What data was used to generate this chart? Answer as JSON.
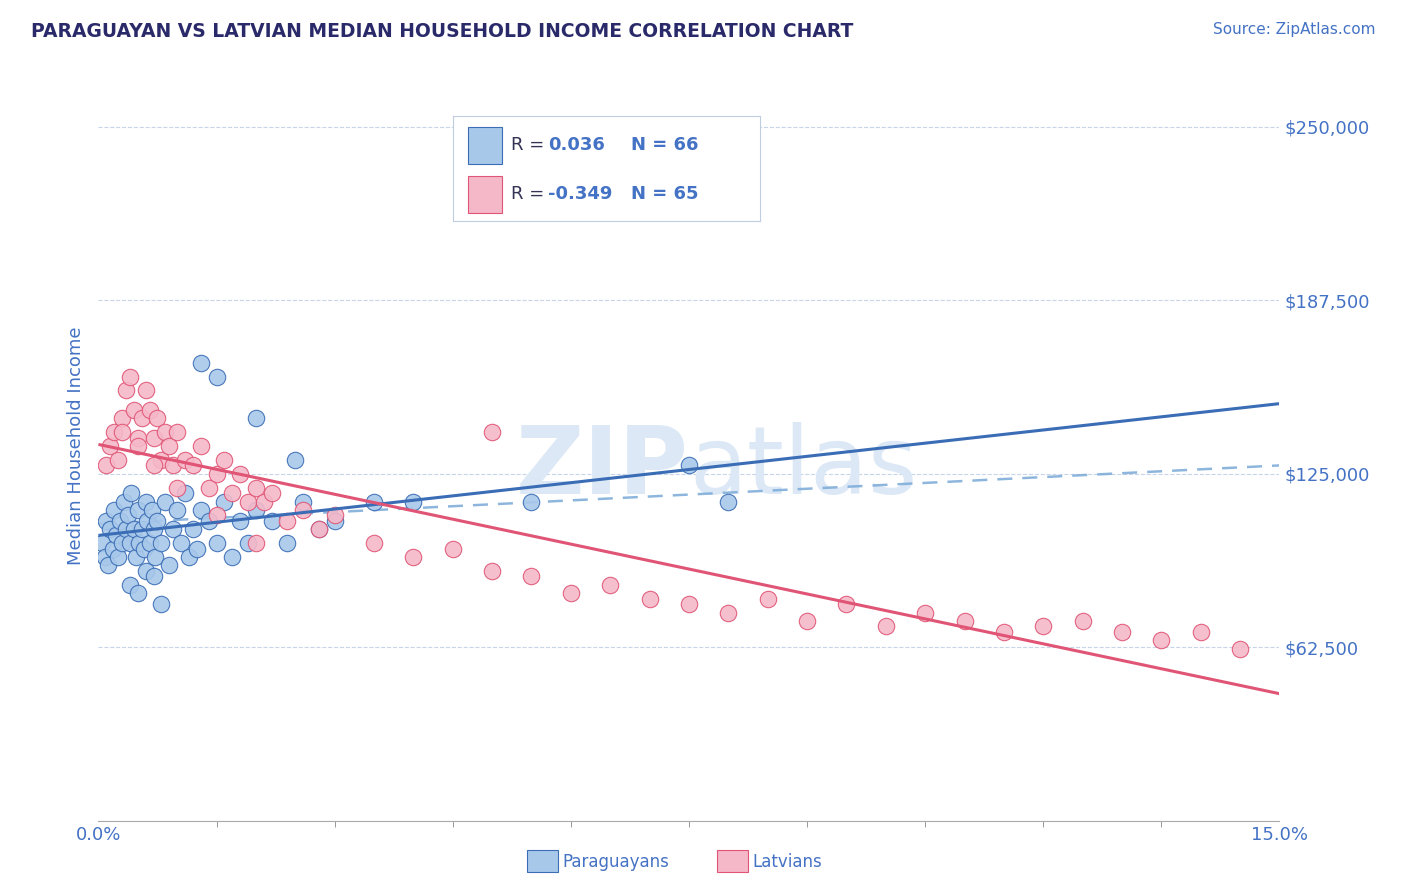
{
  "title": "PARAGUAYAN VS LATVIAN MEDIAN HOUSEHOLD INCOME CORRELATION CHART",
  "source": "Source: ZipAtlas.com",
  "ylabel": "Median Household Income",
  "xlim": [
    0.0,
    15.0
  ],
  "ylim": [
    0,
    270000
  ],
  "yticks": [
    0,
    62500,
    125000,
    187500,
    250000
  ],
  "ytick_labels": [
    "",
    "$62,500",
    "$125,000",
    "$187,500",
    "$250,000"
  ],
  "xtick_minor": [
    1.5,
    3.0,
    4.5,
    6.0,
    7.5,
    9.0,
    10.5,
    12.0,
    13.5
  ],
  "paraguayan_R": 0.036,
  "paraguayan_N": 66,
  "latvian_R": -0.349,
  "latvian_N": 65,
  "blue_dot_color": "#a8c8ea",
  "pink_dot_color": "#f5b8c8",
  "blue_line_color": "#3a6db5",
  "pink_line_color": "#e05575",
  "blue_dashed_color": "#7aaad8",
  "text_blue": "#4472c4",
  "text_dark": "#2a2a6a",
  "watermark_color": "#dce8f5",
  "background_color": "#ffffff",
  "grid_color": "#c8d4e8",
  "legend_border_color": "#c0cce0",
  "par_x": [
    0.05,
    0.08,
    0.1,
    0.12,
    0.15,
    0.18,
    0.2,
    0.22,
    0.25,
    0.28,
    0.3,
    0.33,
    0.35,
    0.38,
    0.4,
    0.42,
    0.45,
    0.48,
    0.5,
    0.52,
    0.55,
    0.58,
    0.6,
    0.62,
    0.65,
    0.68,
    0.7,
    0.72,
    0.75,
    0.8,
    0.85,
    0.9,
    0.95,
    1.0,
    1.05,
    1.1,
    1.15,
    1.2,
    1.25,
    1.3,
    1.4,
    1.5,
    1.6,
    1.7,
    1.8,
    1.9,
    2.0,
    2.2,
    2.4,
    2.6,
    2.8,
    3.0,
    1.3,
    1.5,
    2.0,
    2.5,
    3.5,
    4.0,
    5.5,
    7.5,
    8.0,
    0.4,
    0.5,
    0.6,
    0.7,
    0.8
  ],
  "par_y": [
    100000,
    95000,
    108000,
    92000,
    105000,
    98000,
    112000,
    103000,
    95000,
    108000,
    100000,
    115000,
    105000,
    110000,
    100000,
    118000,
    105000,
    95000,
    112000,
    100000,
    105000,
    98000,
    115000,
    108000,
    100000,
    112000,
    105000,
    95000,
    108000,
    100000,
    115000,
    92000,
    105000,
    112000,
    100000,
    118000,
    95000,
    105000,
    98000,
    112000,
    108000,
    100000,
    115000,
    95000,
    108000,
    100000,
    112000,
    108000,
    100000,
    115000,
    105000,
    108000,
    165000,
    160000,
    145000,
    130000,
    115000,
    115000,
    115000,
    128000,
    115000,
    85000,
    82000,
    90000,
    88000,
    78000
  ],
  "lat_x": [
    0.1,
    0.15,
    0.2,
    0.25,
    0.3,
    0.35,
    0.4,
    0.45,
    0.5,
    0.55,
    0.6,
    0.65,
    0.7,
    0.75,
    0.8,
    0.85,
    0.9,
    0.95,
    1.0,
    1.1,
    1.2,
    1.3,
    1.4,
    1.5,
    1.6,
    1.7,
    1.8,
    1.9,
    2.0,
    2.1,
    2.2,
    2.4,
    2.6,
    2.8,
    3.0,
    3.5,
    4.0,
    4.5,
    5.0,
    5.5,
    6.0,
    6.5,
    7.0,
    7.5,
    8.0,
    8.5,
    9.0,
    9.5,
    10.0,
    10.5,
    11.0,
    11.5,
    12.0,
    12.5,
    13.0,
    13.5,
    14.0,
    14.5,
    0.3,
    0.5,
    0.7,
    1.0,
    1.5,
    2.0,
    5.0
  ],
  "lat_y": [
    128000,
    135000,
    140000,
    130000,
    145000,
    155000,
    160000,
    148000,
    138000,
    145000,
    155000,
    148000,
    138000,
    145000,
    130000,
    140000,
    135000,
    128000,
    140000,
    130000,
    128000,
    135000,
    120000,
    125000,
    130000,
    118000,
    125000,
    115000,
    120000,
    115000,
    118000,
    108000,
    112000,
    105000,
    110000,
    100000,
    95000,
    98000,
    90000,
    88000,
    82000,
    85000,
    80000,
    78000,
    75000,
    80000,
    72000,
    78000,
    70000,
    75000,
    72000,
    68000,
    70000,
    72000,
    68000,
    65000,
    68000,
    62000,
    140000,
    135000,
    128000,
    120000,
    110000,
    100000,
    140000
  ]
}
